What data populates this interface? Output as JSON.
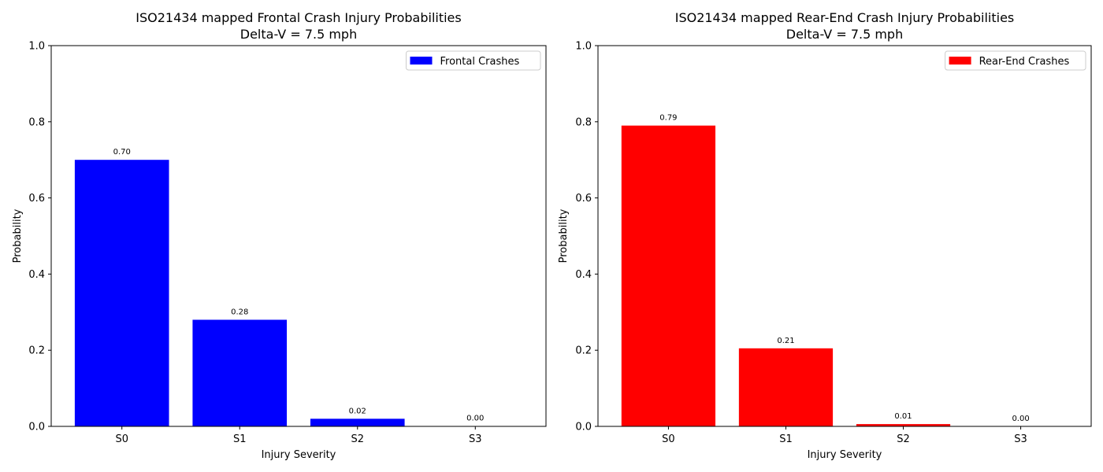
{
  "chart_data": [
    {
      "type": "bar",
      "title_line1": "ISO21434 mapped Frontal Crash Injury Probabilities",
      "title_line2": "Delta-V = 7.5 mph",
      "xlabel": "Injury Severity",
      "ylabel": "Probability",
      "categories": [
        "S0",
        "S1",
        "S2",
        "S3"
      ],
      "series": [
        {
          "name": "Frontal Crashes",
          "values": [
            0.7,
            0.28,
            0.02,
            0.001
          ],
          "color": "#0000ff"
        }
      ],
      "data_labels": [
        "0.70",
        "0.28",
        "0.02",
        "0.00"
      ],
      "ylim": [
        0,
        1.0
      ],
      "yticks": [
        0.0,
        0.2,
        0.4,
        0.6,
        0.8,
        1.0
      ],
      "ytick_labels": [
        "0.0",
        "0.2",
        "0.4",
        "0.6",
        "0.8",
        "1.0"
      ],
      "legend_position": "top-right",
      "grid": false
    },
    {
      "type": "bar",
      "title_line1": "ISO21434 mapped Rear-End Crash Injury Probabilities",
      "title_line2": "Delta-V = 7.5 mph",
      "xlabel": "Injury Severity",
      "ylabel": "Probability",
      "categories": [
        "S0",
        "S1",
        "S2",
        "S3"
      ],
      "series": [
        {
          "name": "Rear-End Crashes",
          "values": [
            0.79,
            0.205,
            0.006,
            0.0
          ],
          "color": "#ff0000"
        }
      ],
      "data_labels": [
        "0.79",
        "0.21",
        "0.01",
        "0.00"
      ],
      "ylim": [
        0,
        1.0
      ],
      "yticks": [
        0.0,
        0.2,
        0.4,
        0.6,
        0.8,
        1.0
      ],
      "ytick_labels": [
        "0.0",
        "0.2",
        "0.4",
        "0.6",
        "0.8",
        "1.0"
      ],
      "legend_position": "top-right",
      "grid": false
    }
  ]
}
